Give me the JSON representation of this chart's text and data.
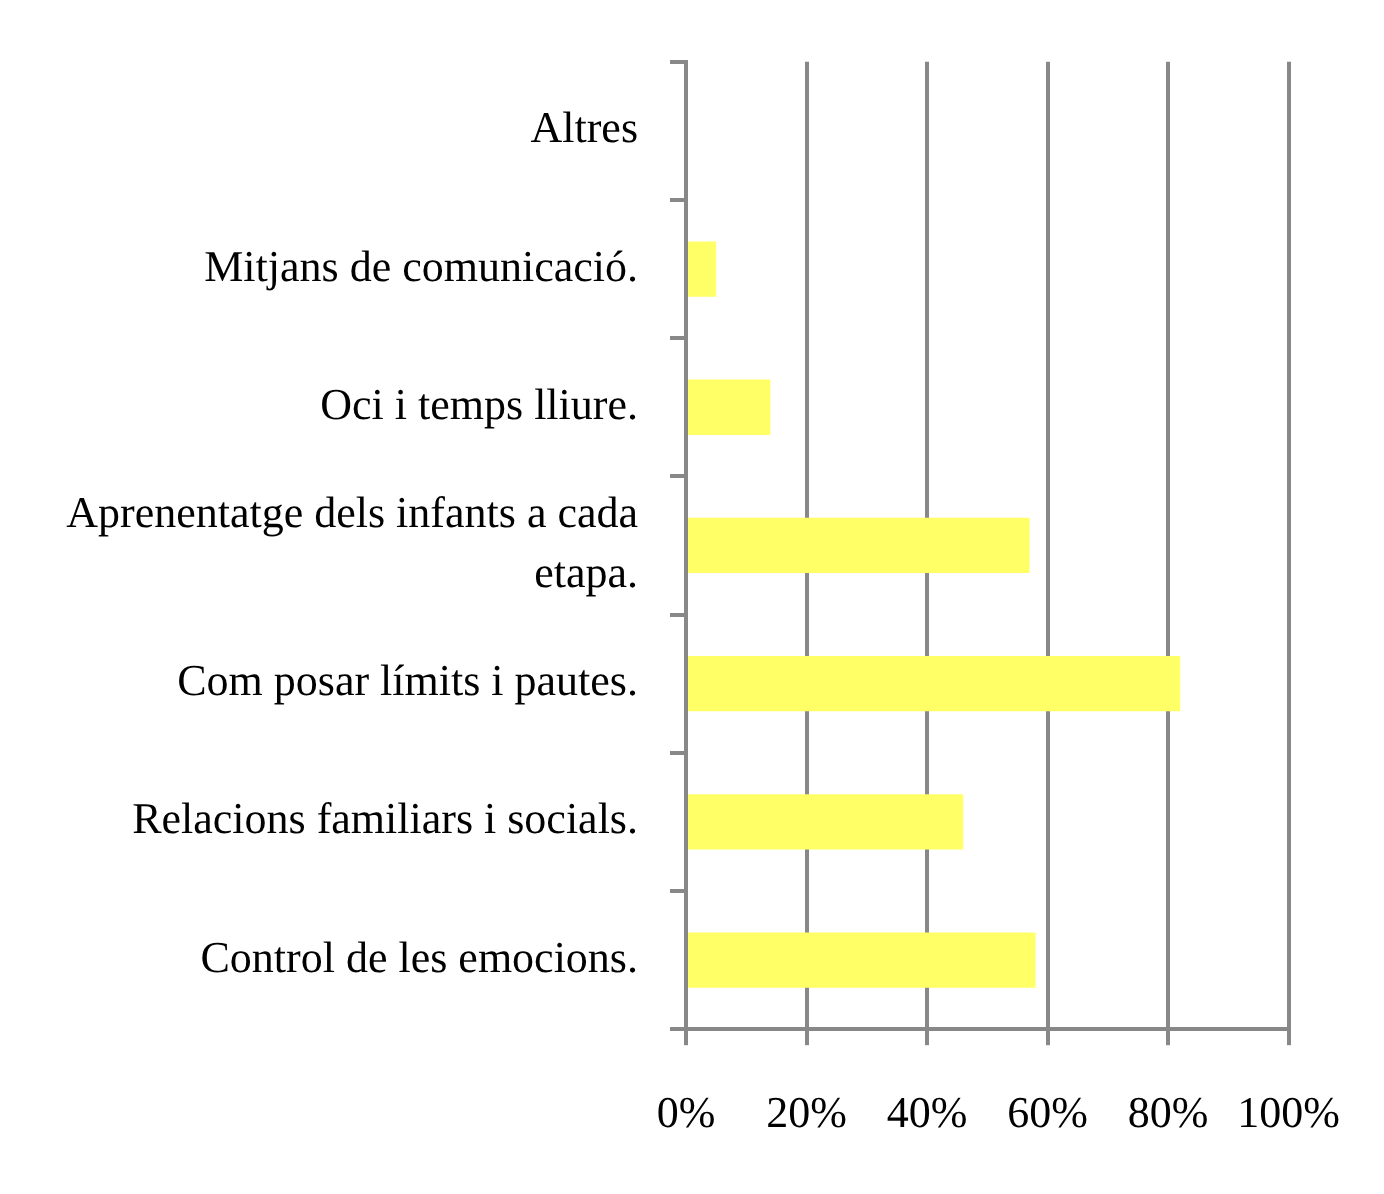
{
  "chart_data": {
    "type": "bar",
    "orientation": "horizontal",
    "categories": [
      "Altres",
      "Mitjans de comunicació.",
      "Oci i temps lliure.",
      "Aprenentatge dels infants a cada etapa.",
      "Com posar límits i pautes.",
      "Relacions familiars i socials.",
      "Control de les emocions."
    ],
    "values": [
      0,
      5,
      14,
      57,
      82,
      46,
      58
    ],
    "color": "#ffff66",
    "xlim": [
      0,
      100
    ],
    "xticks": [
      {
        "value": 0,
        "label": "0%"
      },
      {
        "value": 20,
        "label": "20%"
      },
      {
        "value": 40,
        "label": "40%"
      },
      {
        "value": 60,
        "label": "60%"
      },
      {
        "value": 80,
        "label": "80%"
      },
      {
        "value": 100,
        "label": "100%"
      }
    ],
    "grid": "x",
    "legend": false
  }
}
